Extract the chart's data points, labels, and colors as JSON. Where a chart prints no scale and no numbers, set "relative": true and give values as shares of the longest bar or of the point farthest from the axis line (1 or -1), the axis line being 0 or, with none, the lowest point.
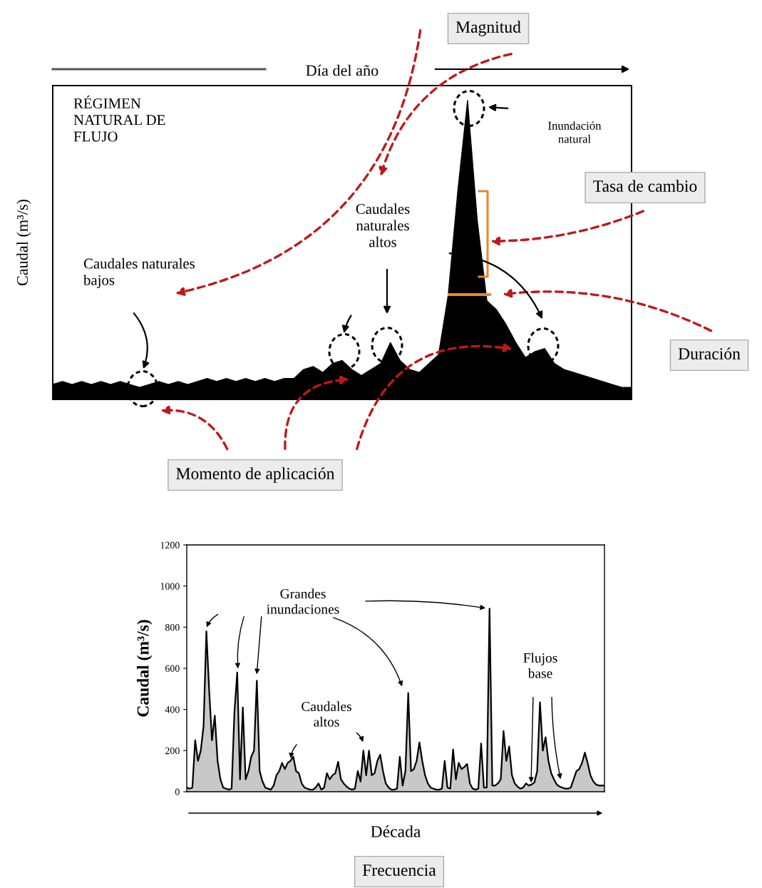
{
  "chart_data": [
    {
      "type": "area",
      "relative": true,
      "tick_labels": false,
      "xlabel": "Día del año",
      "ylabel": "Caudal (m³/s)",
      "color": "#000000",
      "categories": [
        null,
        null,
        null,
        null,
        null,
        null,
        null,
        null,
        null,
        null,
        null,
        null,
        null,
        null,
        null,
        null,
        null,
        null,
        null,
        null,
        null,
        null,
        null,
        null,
        null,
        null,
        null,
        null,
        null,
        null,
        null,
        null,
        null,
        null,
        null,
        null,
        null,
        null,
        null,
        null,
        null,
        null,
        null,
        null,
        null,
        null,
        null,
        null,
        null,
        null,
        null,
        null,
        null,
        null,
        null,
        null,
        null,
        null,
        null,
        null,
        null
      ],
      "values": [
        0.05,
        0.06,
        0.05,
        0.06,
        0.05,
        0.06,
        0.05,
        0.06,
        0.05,
        0.04,
        0.05,
        0.06,
        0.05,
        0.06,
        0.05,
        0.06,
        0.07,
        0.06,
        0.07,
        0.06,
        0.07,
        0.06,
        0.07,
        0.06,
        0.07,
        0.07,
        0.1,
        0.11,
        0.09,
        0.12,
        0.13,
        0.1,
        0.08,
        0.1,
        0.12,
        0.19,
        0.13,
        0.1,
        0.09,
        0.12,
        0.15,
        0.35,
        0.7,
        1.0,
        0.6,
        0.33,
        0.3,
        0.25,
        0.19,
        0.14,
        0.16,
        0.17,
        0.12,
        0.1,
        0.09,
        0.08,
        0.07,
        0.06,
        0.05,
        0.04,
        0.04
      ],
      "annotations": [
        "RÉGIMEN\nNATURAL DE\nFLUJO",
        "Inundación\nnatural",
        "Caudales\nnaturales\naltos",
        "Caudales naturales\nbajos",
        "Magnitud",
        "Tasa de cambio",
        "Duración",
        "Momento de aplicación"
      ]
    },
    {
      "type": "area",
      "tick_labels": "y",
      "xlabel": "Década",
      "ylabel": "Caudal (m³/s)",
      "color": "#c8c8c8",
      "ylim": [
        0,
        1200
      ],
      "yticks": [
        0,
        200,
        400,
        600,
        800,
        1000,
        1200
      ],
      "categories": [
        null,
        null,
        null,
        null,
        null,
        null,
        null,
        null,
        null,
        null,
        null,
        null,
        null,
        null,
        null,
        null,
        null,
        null,
        null,
        null,
        null,
        null,
        null,
        null,
        null,
        null,
        null,
        null,
        null,
        null,
        null,
        null,
        null,
        null,
        null,
        null,
        null,
        null,
        null,
        null,
        null,
        null,
        null,
        null,
        null,
        null,
        null,
        null,
        null,
        null,
        null,
        null,
        null,
        null,
        null,
        null,
        null,
        null,
        null,
        null,
        null,
        null,
        null,
        null,
        null,
        null,
        null,
        null,
        null,
        null,
        null,
        null,
        null,
        null,
        null,
        null,
        null,
        null,
        null,
        null,
        null,
        null,
        null,
        null,
        null,
        null,
        null,
        null,
        null,
        null,
        null,
        null,
        null,
        null,
        null,
        null,
        null,
        null,
        null,
        null,
        null,
        null,
        null,
        null,
        null,
        null,
        null,
        null,
        null,
        null,
        null,
        null,
        null,
        null,
        null,
        null,
        null,
        null,
        null,
        null,
        null,
        null,
        null,
        null,
        null,
        null,
        null,
        null,
        null,
        null,
        null,
        null,
        null,
        null,
        null,
        null,
        null,
        null,
        null,
        null,
        null,
        null,
        null,
        null,
        null,
        null,
        null,
        null,
        null,
        null
      ],
      "values": [
        20,
        15,
        20,
        250,
        150,
        200,
        320,
        780,
        490,
        250,
        370,
        150,
        60,
        20,
        15,
        10,
        15,
        385,
        580,
        60,
        410,
        60,
        100,
        170,
        200,
        540,
        100,
        50,
        20,
        15,
        10,
        30,
        80,
        100,
        140,
        110,
        140,
        150,
        170,
        100,
        90,
        40,
        20,
        15,
        10,
        10,
        20,
        40,
        10,
        20,
        90,
        60,
        80,
        90,
        145,
        60,
        40,
        25,
        15,
        10,
        15,
        100,
        50,
        200,
        80,
        200,
        80,
        90,
        150,
        180,
        100,
        40,
        20,
        10,
        10,
        15,
        170,
        30,
        100,
        480,
        100,
        110,
        150,
        240,
        150,
        80,
        40,
        20,
        15,
        10,
        10,
        15,
        150,
        20,
        15,
        205,
        60,
        140,
        110,
        120,
        135,
        40,
        15,
        10,
        15,
        235,
        20,
        20,
        890,
        30,
        30,
        40,
        60,
        295,
        150,
        220,
        80,
        40,
        25,
        15,
        20,
        40,
        30,
        35,
        45,
        100,
        435,
        200,
        265,
        150,
        90,
        60,
        35,
        25,
        20,
        15,
        15,
        20,
        60,
        100,
        110,
        140,
        190,
        140,
        80,
        50,
        35,
        30,
        30,
        30
      ],
      "annotations": [
        "Grandes\ninundaciones",
        "Caudales\naltos",
        "Flujos\nbase",
        "Frecuencia"
      ]
    }
  ]
}
